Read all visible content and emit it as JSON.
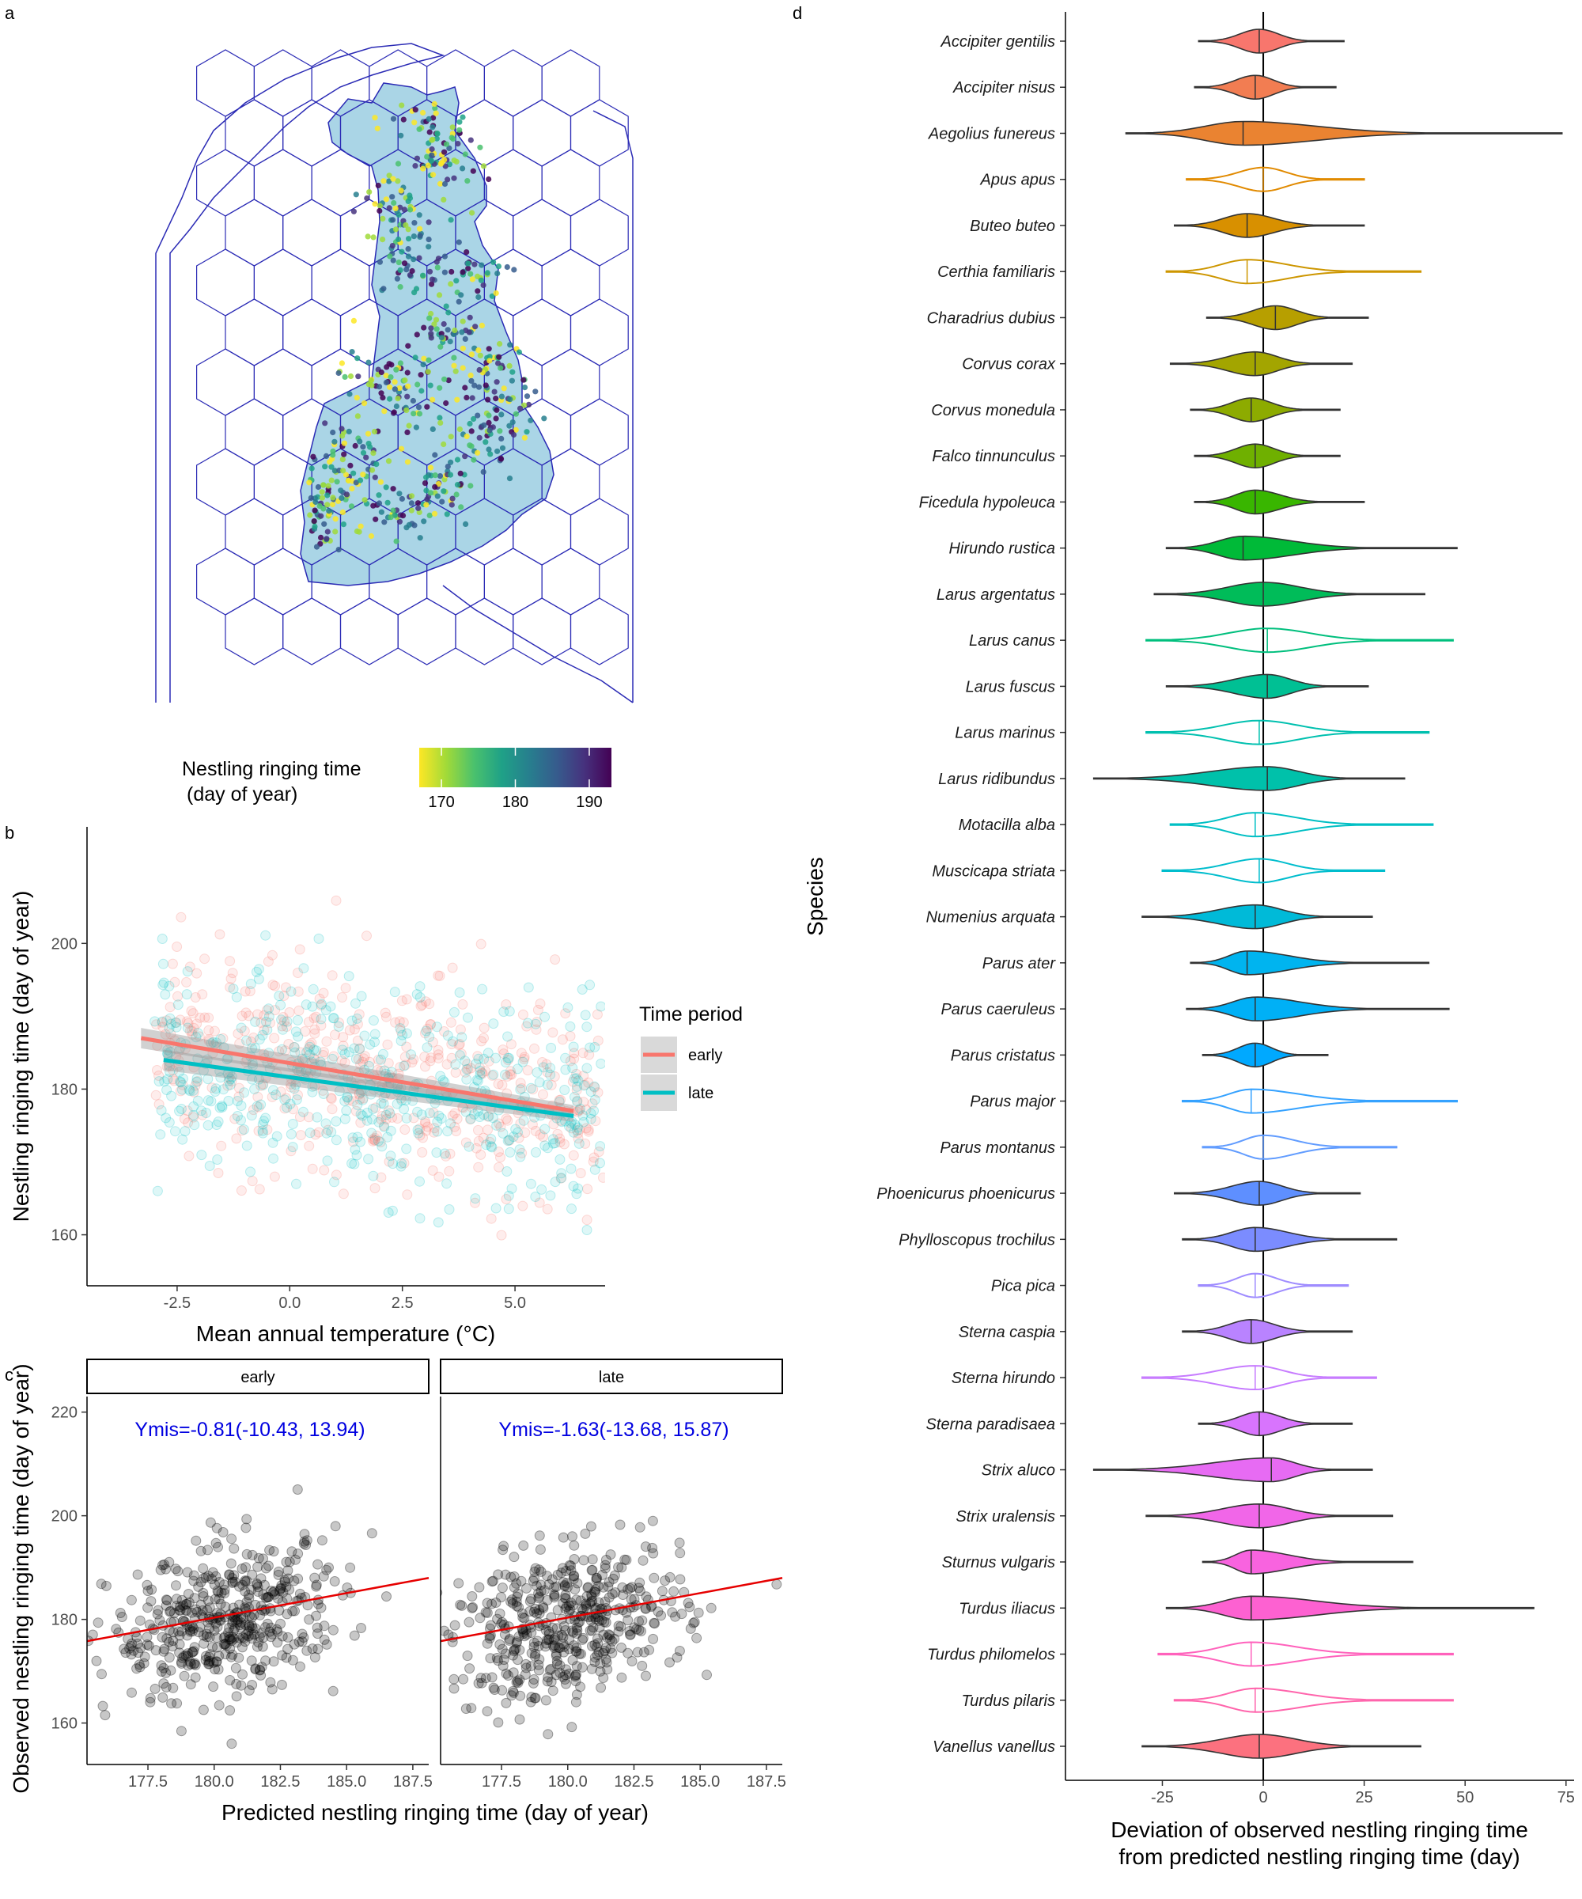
{
  "panels": {
    "a": "a",
    "b": "b",
    "c": "c",
    "d": "d"
  },
  "map": {
    "legend_title_line1": "Nestling ringing time",
    "legend_title_line2": "(day of year)",
    "colorbar_ticks": [
      "170",
      "180",
      "190"
    ],
    "colorbar_range": [
      167,
      193
    ],
    "colorbar_colors": [
      "#fde725",
      "#a0da39",
      "#4ac16d",
      "#1fa187",
      "#277f8e",
      "#365c8d",
      "#46327e",
      "#440154"
    ]
  },
  "chart_data": [
    {
      "panel": "b",
      "type": "scatter",
      "xlabel": "Mean annual temperature (°C)",
      "ylabel": "Nestling ringing time (day of year)",
      "xlim": [
        -4.5,
        7
      ],
      "ylim": [
        153,
        216
      ],
      "xticks": [
        "-2.5",
        "0.0",
        "2.5",
        "5.0"
      ],
      "yticks": [
        "160",
        "180",
        "200"
      ],
      "legend_title": "Time period",
      "legend_position": "right",
      "series": [
        {
          "name": "early",
          "color": "#f8766d",
          "fit_x": [
            -3.3,
            6.3
          ],
          "fit_y": [
            187.0,
            177.0
          ],
          "point_count": 500
        },
        {
          "name": "late",
          "color": "#00bfc4",
          "fit_x": [
            -2.8,
            6.3
          ],
          "fit_y": [
            184.0,
            176.3
          ],
          "point_count": 500
        }
      ]
    },
    {
      "panel": "c",
      "type": "scatter",
      "xlabel": "Predicted nestling ringing time (day of year)",
      "ylabel": "Observed nestling ringing time (day of year)",
      "ylim": [
        152,
        223
      ],
      "yticks": [
        "160",
        "180",
        "200",
        "220"
      ],
      "facets": [
        {
          "label": "early",
          "annotation": "Ymis=-0.81(-10.43, 13.94)",
          "xlim": [
            175.2,
            188.1
          ],
          "xticks": [
            "177.5",
            "180.0",
            "182.5",
            "185.0",
            "187.5"
          ],
          "fit_x": [
            175.2,
            188.1
          ],
          "fit_y": [
            175.8,
            188.0
          ],
          "point_count": 480
        },
        {
          "label": "late",
          "annotation": "Ymis=-1.63(-13.68, 15.87)",
          "xlim": [
            175.2,
            188.1
          ],
          "xticks": [
            "177.5",
            "180.0",
            "182.5",
            "185.0",
            "187.5"
          ],
          "fit_x": [
            175.2,
            188.1
          ],
          "fit_y": [
            175.8,
            188.0
          ],
          "point_count": 480
        }
      ]
    },
    {
      "panel": "d",
      "type": "violin",
      "xlabel_line1": "Deviation of observed nestling ringing time",
      "xlabel_line2": "from predicted nestling ringing time (day)",
      "ylabel": "Species",
      "xlim": [
        -49,
        77
      ],
      "xticks": [
        "-25",
        "0",
        "25",
        "50",
        "75"
      ],
      "species": [
        {
          "name": "Accipiter gentilis",
          "color": "#f8766d",
          "min": -16,
          "max": 20,
          "median": -1,
          "filled": true
        },
        {
          "name": "Accipiter nisus",
          "color": "#f27d52",
          "min": -17,
          "max": 18,
          "median": -2,
          "filled": true
        },
        {
          "name": "Aegolius funereus",
          "color": "#ea8331",
          "min": -34,
          "max": 74,
          "median": -5,
          "filled": true
        },
        {
          "name": "Apus apus",
          "color": "#e18a00",
          "min": -19,
          "max": 25,
          "median": 0,
          "filled": false
        },
        {
          "name": "Buteo buteo",
          "color": "#d89000",
          "min": -22,
          "max": 25,
          "median": -4,
          "filled": true
        },
        {
          "name": "Certhia familiaris",
          "color": "#cd9600",
          "min": -24,
          "max": 39,
          "median": -4,
          "filled": false
        },
        {
          "name": "Charadrius dubius",
          "color": "#b79f00",
          "min": -14,
          "max": 26,
          "median": 3,
          "filled": true
        },
        {
          "name": "Corvus corax",
          "color": "#a3a500",
          "min": -23,
          "max": 22,
          "median": -2,
          "filled": true
        },
        {
          "name": "Corvus monedula",
          "color": "#8dab00",
          "min": -18,
          "max": 19,
          "median": -3,
          "filled": true
        },
        {
          "name": "Falco tinnunculus",
          "color": "#6fb000",
          "min": -17,
          "max": 19,
          "median": -2,
          "filled": true
        },
        {
          "name": "Ficedula hypoleuca",
          "color": "#39b600",
          "min": -17,
          "max": 25,
          "median": -2,
          "filled": true
        },
        {
          "name": "Hirundo rustica",
          "color": "#00ba38",
          "min": -24,
          "max": 48,
          "median": -5,
          "filled": true
        },
        {
          "name": "Larus argentatus",
          "color": "#00bc59",
          "min": -27,
          "max": 40,
          "median": 0,
          "filled": true
        },
        {
          "name": "Larus canus",
          "color": "#00bf7d",
          "min": -29,
          "max": 47,
          "median": 1,
          "filled": false
        },
        {
          "name": "Larus fuscus",
          "color": "#00c094",
          "min": -24,
          "max": 26,
          "median": 1,
          "filled": true
        },
        {
          "name": "Larus marinus",
          "color": "#00c0af",
          "min": -29,
          "max": 41,
          "median": -1,
          "filled": false
        },
        {
          "name": "Larus ridibundus",
          "color": "#00c1aa",
          "min": -42,
          "max": 35,
          "median": 1,
          "filled": true
        },
        {
          "name": "Motacilla alba",
          "color": "#00bfc4",
          "min": -23,
          "max": 42,
          "median": -2,
          "filled": false
        },
        {
          "name": "Muscicapa striata",
          "color": "#00bdcd",
          "min": -25,
          "max": 30,
          "median": -1,
          "filled": false
        },
        {
          "name": "Numenius arquata",
          "color": "#00bad8",
          "min": -30,
          "max": 27,
          "median": -2,
          "filled": true
        },
        {
          "name": "Parus ater",
          "color": "#00b4ef",
          "min": -18,
          "max": 41,
          "median": -4,
          "filled": true
        },
        {
          "name": "Parus caeruleus",
          "color": "#00b0f6",
          "min": -19,
          "max": 46,
          "median": -2,
          "filled": true
        },
        {
          "name": "Parus cristatus",
          "color": "#00a9ff",
          "min": -15,
          "max": 16,
          "median": -2,
          "filled": true
        },
        {
          "name": "Parus major",
          "color": "#35a2ff",
          "min": -20,
          "max": 48,
          "median": -3,
          "filled": false
        },
        {
          "name": "Parus montanus",
          "color": "#619cff",
          "min": -15,
          "max": 33,
          "median": 0,
          "filled": false
        },
        {
          "name": "Phoenicurus phoenicurus",
          "color": "#5e8fff",
          "min": -22,
          "max": 24,
          "median": -1,
          "filled": true
        },
        {
          "name": "Phylloscopus trochilus",
          "color": "#7b8cff",
          "min": -20,
          "max": 33,
          "median": -2,
          "filled": true
        },
        {
          "name": "Pica pica",
          "color": "#9f8cff",
          "min": -16,
          "max": 21,
          "median": -2,
          "filled": false
        },
        {
          "name": "Sterna caspia",
          "color": "#b983ff",
          "min": -20,
          "max": 22,
          "median": -3,
          "filled": true
        },
        {
          "name": "Sterna hirundo",
          "color": "#c77cff",
          "min": -30,
          "max": 28,
          "median": -2,
          "filled": false
        },
        {
          "name": "Sterna paradisaea",
          "color": "#d874fd",
          "min": -16,
          "max": 22,
          "median": -1,
          "filled": true
        },
        {
          "name": "Strix aluco",
          "color": "#e76bf3",
          "min": -42,
          "max": 27,
          "median": 2,
          "filled": true
        },
        {
          "name": "Strix uralensis",
          "color": "#f166e8",
          "min": -29,
          "max": 32,
          "median": -1,
          "filled": true
        },
        {
          "name": "Sturnus vulgaris",
          "color": "#f863df",
          "min": -15,
          "max": 37,
          "median": -3,
          "filled": true
        },
        {
          "name": "Turdus iliacus",
          "color": "#fd61d1",
          "min": -24,
          "max": 67,
          "median": -3,
          "filled": true
        },
        {
          "name": "Turdus philomelos",
          "color": "#ff62bc",
          "min": -26,
          "max": 47,
          "median": -3,
          "filled": false
        },
        {
          "name": "Turdus pilaris",
          "color": "#ff65ac",
          "min": -22,
          "max": 47,
          "median": -2,
          "filled": false
        },
        {
          "name": "Vanellus vanellus",
          "color": "#fc717f",
          "min": -30,
          "max": 39,
          "median": -1,
          "filled": true
        }
      ]
    }
  ]
}
